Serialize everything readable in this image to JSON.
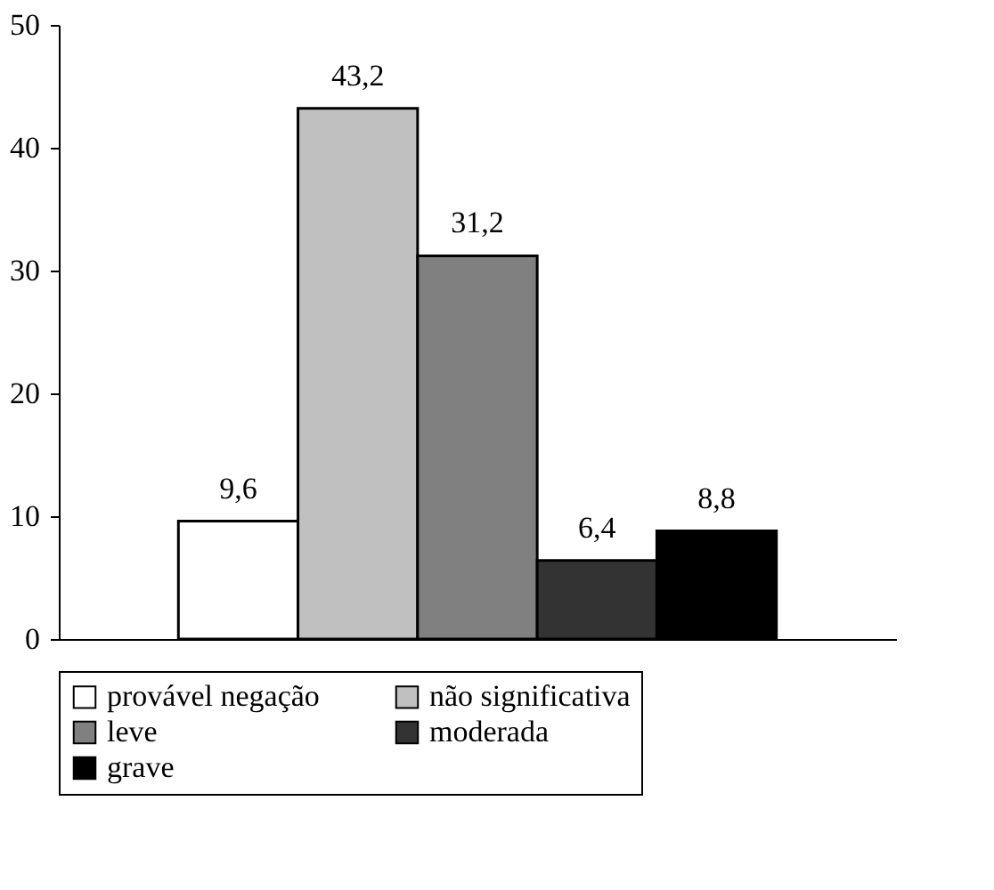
{
  "chart_data": {
    "type": "bar",
    "categories": [
      null
    ],
    "series": [
      {
        "name": "provável negação",
        "color": "#ffffff",
        "values": [
          9.6
        ],
        "value_labels": [
          "9,6"
        ]
      },
      {
        "name": "não significativa",
        "color": "#c0c0c0",
        "values": [
          43.2
        ],
        "value_labels": [
          "43,2"
        ]
      },
      {
        "name": "leve",
        "color": "#808080",
        "values": [
          31.2
        ],
        "value_labels": [
          "31,2"
        ]
      },
      {
        "name": "moderada",
        "color": "#333333",
        "values": [
          6.4
        ],
        "value_labels": [
          "6,4"
        ]
      },
      {
        "name": "grave",
        "color": "#000000",
        "values": [
          8.8
        ],
        "value_labels": [
          "8,8"
        ]
      }
    ],
    "ylim": [
      0,
      50
    ],
    "yticks": [
      0,
      10,
      20,
      30,
      40,
      50
    ],
    "grid": false,
    "legend": "bottom",
    "tick_labels": "y"
  }
}
